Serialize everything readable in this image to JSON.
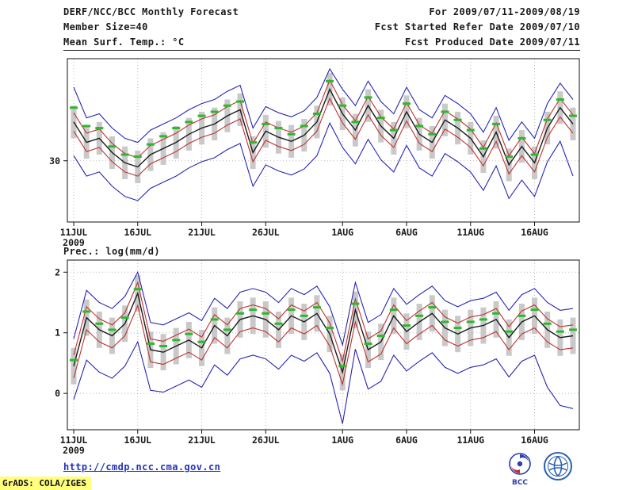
{
  "header": {
    "line1_left": "DERF/NCC/BCC Monthly Forecast",
    "line2_left": "Member Size=40",
    "line3_left": "Mean Surf. Temp.: °C",
    "line1_right": "For 2009/07/11-2009/08/19",
    "line2_right": "Fcst Started Refer Date 2009/07/10",
    "line3_right": "Fcst Produced Date 2009/07/11"
  },
  "precip_label": "Prec.: log(mm/d)",
  "footer": {
    "url": "http://cmdp.ncc.cma.gov.cn",
    "bcc_label": "BCC",
    "grads_stamp": "GrADS: COLA/IGES"
  },
  "colors": {
    "envelope_blue": "#2525b5",
    "std_red": "#c03030",
    "mean_black": "#1a1a1a",
    "obs_green": "#2eb82e",
    "spread_gray": "#c9c9c9",
    "grid_gray": "#b8b8b8"
  },
  "chart_data": [
    {
      "type": "line",
      "title": "Mean Surf. Temp.: °C",
      "x_range_label": "2009/07/11 - 2009/08/19 (daily)",
      "n_points": 40,
      "xtick_indices": [
        0,
        5,
        10,
        15,
        21,
        26,
        31,
        36
      ],
      "xtick_labels": [
        "11JUL",
        "16JUL",
        "21JUL",
        "26JUL",
        "1AUG",
        "6AUG",
        "11AUG",
        "16AUG"
      ],
      "x_year_label": "2009",
      "ylim": [
        24,
        40
      ],
      "yticks": [
        30
      ],
      "ytick_labels": [
        "30"
      ],
      "grid": "dotted",
      "legend_position": "none",
      "series": [
        {
          "name": "ensemble-spread",
          "type": "bar",
          "color": "#c9c9c9",
          "low": [
            32.2,
            30.2,
            30.6,
            29.2,
            28.2,
            27.8,
            29.0,
            29.6,
            30.2,
            31.0,
            31.6,
            32.0,
            32.8,
            33.4,
            29.2,
            31.3,
            30.7,
            30.3,
            30.9,
            32.2,
            35.4,
            33.0,
            31.4,
            33.8,
            31.8,
            30.6,
            33.2,
            31.0,
            30.2,
            32.4,
            31.6,
            30.6,
            28.8,
            31.2,
            28.0,
            29.8,
            28.2,
            31.6,
            33.6,
            32.0
          ],
          "high": [
            35.4,
            33.4,
            33.8,
            32.4,
            31.4,
            31.0,
            32.2,
            32.8,
            33.4,
            34.2,
            34.8,
            35.2,
            36.0,
            36.6,
            32.4,
            34.5,
            33.9,
            33.5,
            34.1,
            35.4,
            38.6,
            36.2,
            34.6,
            37.0,
            35.0,
            33.8,
            36.4,
            34.2,
            33.4,
            35.6,
            34.8,
            33.8,
            32.0,
            34.4,
            31.2,
            33.0,
            31.4,
            34.8,
            36.8,
            35.2
          ]
        },
        {
          "name": "ensemble-max",
          "type": "line",
          "color": "#2525b5",
          "values": [
            37.2,
            34.2,
            34.6,
            33.2,
            32.2,
            31.8,
            33.0,
            33.6,
            34.2,
            35.0,
            35.6,
            36.0,
            36.8,
            37.4,
            33.2,
            35.3,
            34.7,
            34.3,
            34.9,
            36.2,
            39.0,
            37.0,
            35.4,
            37.8,
            35.8,
            34.6,
            37.2,
            35.0,
            34.2,
            36.4,
            35.6,
            34.6,
            32.8,
            35.2,
            32.0,
            33.8,
            32.2,
            35.6,
            37.6,
            36.0
          ]
        },
        {
          "name": "ensemble-min",
          "type": "line",
          "color": "#2525b5",
          "values": [
            30.5,
            28.5,
            28.9,
            27.5,
            26.5,
            26.1,
            27.3,
            27.9,
            28.5,
            29.3,
            29.9,
            30.3,
            31.1,
            31.7,
            27.5,
            29.6,
            29.0,
            28.6,
            29.2,
            30.5,
            33.7,
            31.3,
            29.7,
            32.1,
            30.1,
            28.9,
            31.5,
            29.3,
            28.5,
            30.7,
            29.9,
            28.9,
            27.1,
            29.5,
            26.3,
            28.1,
            26.5,
            29.9,
            31.9,
            28.5
          ]
        },
        {
          "name": "mean-plus-std",
          "type": "line",
          "color": "#c03030",
          "values": [
            34.7,
            32.7,
            33.1,
            31.7,
            30.7,
            30.3,
            31.5,
            32.1,
            32.7,
            33.5,
            34.1,
            34.5,
            35.3,
            35.9,
            31.7,
            33.8,
            33.2,
            32.8,
            33.4,
            34.7,
            37.9,
            35.5,
            33.9,
            36.3,
            34.3,
            33.1,
            35.7,
            33.5,
            32.7,
            34.9,
            34.1,
            33.1,
            31.3,
            33.7,
            30.5,
            32.3,
            30.7,
            34.1,
            36.1,
            34.5
          ]
        },
        {
          "name": "mean-minus-std",
          "type": "line",
          "color": "#c03030",
          "values": [
            32.9,
            30.9,
            31.3,
            29.9,
            28.9,
            28.5,
            29.7,
            30.3,
            30.9,
            31.7,
            32.3,
            32.7,
            33.5,
            34.1,
            29.9,
            32.0,
            31.4,
            31.0,
            31.6,
            32.9,
            36.1,
            33.7,
            32.1,
            34.5,
            32.5,
            31.3,
            33.9,
            31.7,
            30.9,
            33.1,
            32.3,
            31.3,
            29.5,
            31.9,
            28.7,
            30.5,
            28.9,
            32.3,
            34.3,
            32.7
          ]
        },
        {
          "name": "ensemble-mean",
          "type": "line",
          "color": "#1a1a1a",
          "values": [
            33.8,
            31.8,
            32.2,
            30.8,
            29.8,
            29.4,
            30.6,
            31.2,
            31.8,
            32.6,
            33.2,
            33.6,
            34.4,
            35.0,
            30.8,
            32.9,
            32.3,
            31.9,
            32.5,
            33.8,
            37.0,
            34.6,
            33.0,
            35.4,
            33.4,
            32.2,
            34.8,
            32.6,
            31.8,
            34.0,
            33.2,
            32.2,
            30.4,
            32.8,
            29.6,
            31.4,
            29.8,
            33.2,
            35.2,
            33.6
          ]
        },
        {
          "name": "observation",
          "type": "dash",
          "color": "#2eb82e",
          "values": [
            35.2,
            33.4,
            33.2,
            31.4,
            30.6,
            30.4,
            31.6,
            32.4,
            33.2,
            33.8,
            34.4,
            34.8,
            35.4,
            35.8,
            31.8,
            33.6,
            33.2,
            32.6,
            33.4,
            34.6,
            37.8,
            35.4,
            33.8,
            36.2,
            34.2,
            33.0,
            35.6,
            33.4,
            32.6,
            34.8,
            34.0,
            33.0,
            31.2,
            33.6,
            30.4,
            32.2,
            30.6,
            34.0,
            36.0,
            34.4
          ]
        }
      ]
    },
    {
      "type": "line",
      "title": "Prec.: log(mm/d)",
      "x_range_label": "2009/07/11 - 2009/08/19 (daily)",
      "n_points": 40,
      "xtick_indices": [
        0,
        5,
        10,
        15,
        21,
        26,
        31,
        36
      ],
      "xtick_labels": [
        "11JUL",
        "16JUL",
        "21JUL",
        "26JUL",
        "1AUG",
        "6AUG",
        "11AUG",
        "16AUG"
      ],
      "x_year_label": "2009",
      "ylim": [
        -0.6,
        2.2
      ],
      "yticks": [
        0,
        1,
        2
      ],
      "ytick_labels": [
        "0",
        "1",
        "2"
      ],
      "grid": "dotted",
      "legend_position": "none",
      "series": [
        {
          "name": "ensemble-spread",
          "type": "bar",
          "color": "#c9c9c9",
          "low": [
            0.15,
            0.95,
            0.75,
            0.65,
            0.85,
            1.35,
            0.42,
            0.38,
            0.48,
            0.58,
            0.45,
            0.82,
            0.65,
            0.92,
            0.98,
            0.92,
            0.75,
            0.98,
            0.88,
            1.02,
            0.68,
            0.05,
            1.08,
            0.42,
            0.55,
            0.98,
            0.72,
            0.88,
            1.02,
            0.78,
            0.68,
            0.78,
            0.82,
            0.92,
            0.62,
            0.88,
            0.98,
            0.75,
            0.62,
            0.65
          ],
          "high": [
            0.75,
            1.55,
            1.35,
            1.25,
            1.45,
            1.95,
            1.02,
            0.98,
            1.08,
            1.18,
            1.05,
            1.42,
            1.25,
            1.52,
            1.58,
            1.52,
            1.35,
            1.58,
            1.48,
            1.62,
            1.28,
            0.65,
            1.68,
            1.02,
            1.15,
            1.58,
            1.32,
            1.48,
            1.62,
            1.38,
            1.28,
            1.38,
            1.42,
            1.52,
            1.22,
            1.48,
            1.58,
            1.35,
            1.22,
            1.25
          ]
        },
        {
          "name": "ensemble-max",
          "type": "line",
          "color": "#2525b5",
          "values": [
            0.9,
            1.7,
            1.5,
            1.4,
            1.6,
            2.0,
            1.17,
            1.13,
            1.23,
            1.33,
            1.2,
            1.57,
            1.4,
            1.67,
            1.73,
            1.67,
            1.5,
            1.73,
            1.63,
            1.77,
            1.43,
            0.8,
            1.83,
            1.17,
            1.3,
            1.73,
            1.47,
            1.63,
            1.77,
            1.53,
            1.43,
            1.53,
            1.57,
            1.67,
            1.37,
            1.63,
            1.73,
            1.5,
            1.37,
            1.4
          ]
        },
        {
          "name": "ensemble-min",
          "type": "line",
          "color": "#2525b5",
          "values": [
            -0.1,
            0.55,
            0.35,
            0.25,
            0.45,
            0.85,
            0.05,
            0.02,
            0.12,
            0.22,
            0.1,
            0.47,
            0.3,
            0.57,
            0.63,
            0.57,
            0.4,
            0.63,
            0.53,
            0.67,
            0.33,
            -0.5,
            0.73,
            0.07,
            0.2,
            0.63,
            0.37,
            0.53,
            0.67,
            0.43,
            0.33,
            0.43,
            0.47,
            0.57,
            0.27,
            0.53,
            0.63,
            0.1,
            -0.2,
            -0.25
          ]
        },
        {
          "name": "mean-plus-std",
          "type": "line",
          "color": "#c03030",
          "values": [
            0.63,
            1.43,
            1.23,
            1.13,
            1.33,
            1.83,
            0.9,
            0.86,
            0.96,
            1.06,
            0.93,
            1.3,
            1.13,
            1.4,
            1.46,
            1.4,
            1.23,
            1.46,
            1.36,
            1.5,
            1.16,
            0.53,
            1.56,
            0.9,
            1.03,
            1.46,
            1.2,
            1.36,
            1.5,
            1.26,
            1.16,
            1.26,
            1.3,
            1.4,
            1.1,
            1.36,
            1.46,
            1.23,
            1.1,
            1.13
          ]
        },
        {
          "name": "mean-minus-std",
          "type": "line",
          "color": "#c03030",
          "values": [
            0.25,
            1.05,
            0.85,
            0.75,
            0.95,
            1.45,
            0.52,
            0.48,
            0.58,
            0.68,
            0.55,
            0.92,
            0.75,
            1.02,
            1.08,
            1.02,
            0.85,
            1.08,
            0.98,
            1.12,
            0.78,
            0.15,
            1.18,
            0.52,
            0.65,
            1.08,
            0.82,
            0.98,
            1.12,
            0.88,
            0.78,
            0.88,
            0.92,
            1.02,
            0.72,
            0.98,
            1.08,
            0.85,
            0.72,
            0.75
          ]
        },
        {
          "name": "ensemble-mean",
          "type": "line",
          "color": "#1a1a1a",
          "values": [
            0.45,
            1.25,
            1.05,
            0.95,
            1.15,
            1.65,
            0.72,
            0.68,
            0.78,
            0.88,
            0.75,
            1.12,
            0.95,
            1.22,
            1.28,
            1.22,
            1.05,
            1.28,
            1.18,
            1.32,
            0.98,
            0.35,
            1.38,
            0.72,
            0.85,
            1.28,
            1.02,
            1.18,
            1.32,
            1.08,
            0.98,
            1.08,
            1.12,
            1.22,
            0.92,
            1.18,
            1.28,
            1.05,
            0.92,
            0.95
          ]
        },
        {
          "name": "observation",
          "type": "dash",
          "color": "#2eb82e",
          "values": [
            0.55,
            1.35,
            1.15,
            1.05,
            1.25,
            1.72,
            0.82,
            0.78,
            0.88,
            0.98,
            0.85,
            1.22,
            1.05,
            1.32,
            1.38,
            1.32,
            1.15,
            1.38,
            1.28,
            1.42,
            1.08,
            0.45,
            1.48,
            0.82,
            0.95,
            1.38,
            1.12,
            1.28,
            1.42,
            1.18,
            1.08,
            1.18,
            1.22,
            1.32,
            1.02,
            1.28,
            1.38,
            1.15,
            1.02,
            1.05
          ]
        }
      ]
    }
  ]
}
